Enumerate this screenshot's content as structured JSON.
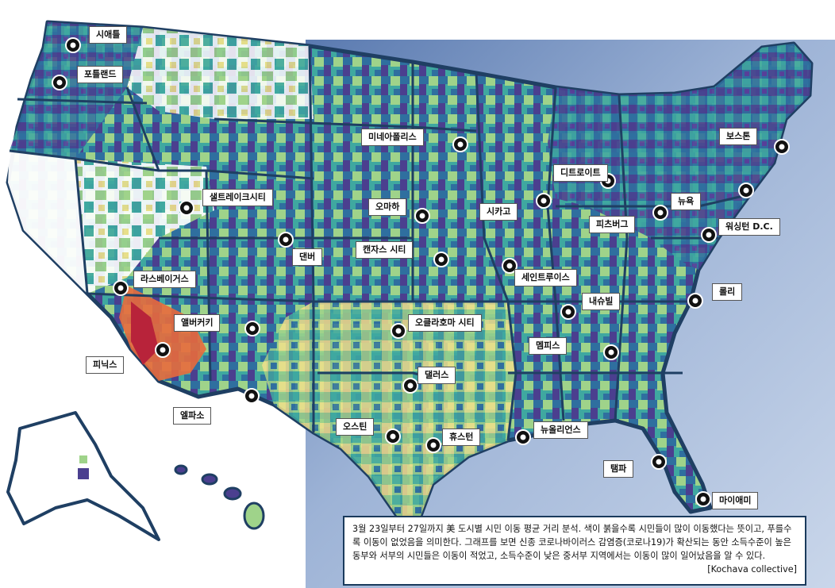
{
  "colors": {
    "background_panel": "#7f98c4",
    "state_border": "#1f3f63",
    "low_mobility": "#4b3f8f",
    "mid_low": "#2f6f9f",
    "mid": "#3fa8a0",
    "mid_high": "#9fd38a",
    "high": "#f0e08a",
    "very_high": "#e86a3c",
    "highest": "#b8233a",
    "no_data": "#ffffff"
  },
  "cities": [
    {
      "id": "seattle",
      "label": "시애틀"
    },
    {
      "id": "portland",
      "label": "포틀랜드"
    },
    {
      "id": "minneapolis",
      "label": "미네아폴리스"
    },
    {
      "id": "boston",
      "label": "보스톤"
    },
    {
      "id": "detroit",
      "label": "디트로이트"
    },
    {
      "id": "salt-lake-city",
      "label": "샐트레이크시티"
    },
    {
      "id": "omaha",
      "label": "오마하"
    },
    {
      "id": "chicago",
      "label": "시카고"
    },
    {
      "id": "new-york",
      "label": "뉴욕"
    },
    {
      "id": "pittsburgh",
      "label": "피츠버그"
    },
    {
      "id": "washington-dc",
      "label": "워싱턴 D.C."
    },
    {
      "id": "denver",
      "label": "댄버"
    },
    {
      "id": "kansas-city",
      "label": "캔자스 시티"
    },
    {
      "id": "las-vegas",
      "label": "라스베이거스"
    },
    {
      "id": "st-louis",
      "label": "세인트루이스"
    },
    {
      "id": "nashville",
      "label": "내슈빌"
    },
    {
      "id": "raleigh",
      "label": "롤리"
    },
    {
      "id": "albuquerque",
      "label": "앨버커키"
    },
    {
      "id": "oklahoma-city",
      "label": "오클라호마 시티"
    },
    {
      "id": "memphis",
      "label": "멤피스"
    },
    {
      "id": "phoenix",
      "label": "피닉스"
    },
    {
      "id": "dallas",
      "label": "댈러스"
    },
    {
      "id": "el-paso",
      "label": "엘파소"
    },
    {
      "id": "austin",
      "label": "오스틴"
    },
    {
      "id": "houston",
      "label": "휴스턴"
    },
    {
      "id": "new-orleans",
      "label": "뉴올리언스"
    },
    {
      "id": "tampa",
      "label": "탬파"
    },
    {
      "id": "miami",
      "label": "마이애미"
    }
  ],
  "caption": {
    "text": "3월 23일부터 27일까지 美 도시별 시민 이동 평균 거리 분석. 색이 붉을수록 시민들이 많이 이동했다는 뜻이고, 푸를수록 이동이 없었음을 의미한다. 그래프를 보면 신종 코로나바이러스 감염증(코로나19)가 확산되는 동안 소득수준이 높은 동부와 서부의 시민들은 이동이 적었고, 소득수준이 낮은 중서부 지역에서는 이동이 많이 일어났음을 알 수 있다.",
    "credit": "[Kochava collective]"
  }
}
